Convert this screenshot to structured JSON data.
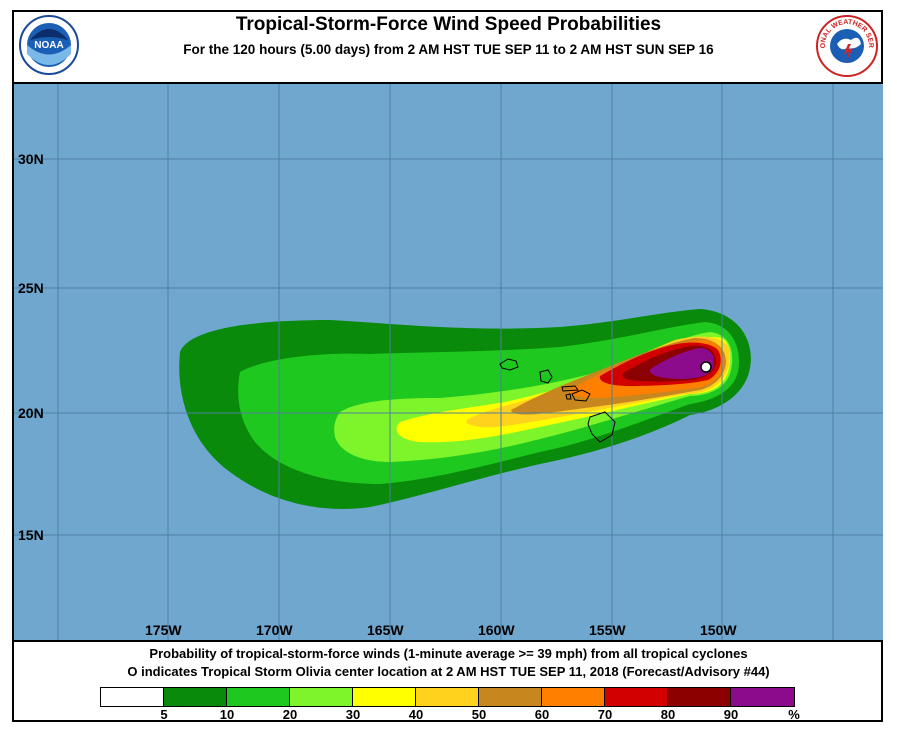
{
  "header": {
    "title": "Tropical-Storm-Force Wind Speed Probabilities",
    "subtitle": "For the 120 hours (5.00 days) from 2 AM HST TUE SEP 11 to 2 AM HST SUN SEP 16",
    "noaa_logo_text": "NOAA",
    "nws_logo_text": "NATIONAL WEATHER SERVICE"
  },
  "map": {
    "ocean_color": "#6fa7cf",
    "grid_color": "#5a86a8",
    "latitude_labels": [
      "30N",
      "25N",
      "20N",
      "15N"
    ],
    "longitude_labels": [
      "175W",
      "170W",
      "165W",
      "160W",
      "155W",
      "150W"
    ],
    "storm_marker": "O",
    "probability_contours_percent": [
      5,
      10,
      20,
      30,
      40,
      50,
      60,
      70,
      80,
      90
    ]
  },
  "footer": {
    "line1": "Probability of tropical-storm-force winds (1-minute average >= 39 mph) from all tropical cyclones",
    "line2": "O indicates Tropical Storm Olivia center location at 2 AM HST TUE SEP 11, 2018 (Forecast/Advisory #44)"
  },
  "legend": {
    "colors": [
      "#ffffff",
      "#0a8a0a",
      "#1ec81e",
      "#7ef52a",
      "#ffff00",
      "#ffd21e",
      "#c8861e",
      "#ff8000",
      "#d20000",
      "#8c0000",
      "#8c0a8c"
    ],
    "ticks": [
      "5",
      "10",
      "20",
      "30",
      "40",
      "50",
      "60",
      "70",
      "80",
      "90",
      "%"
    ]
  }
}
